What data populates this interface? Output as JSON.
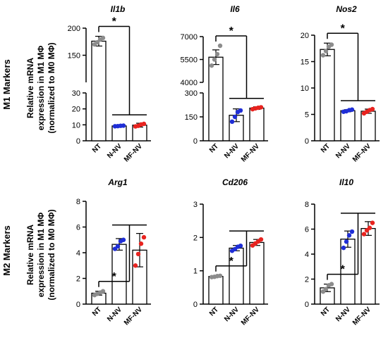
{
  "row_labels": [
    "M1 Markers",
    "M2 Markers"
  ],
  "ylabel_lines": [
    "Relative mRNA",
    "expression in M1 MΦ",
    "(normalized to M0 MΦ)"
  ],
  "significance_marker": "*",
  "chart_data": [
    {
      "type": "bar",
      "title": "Il1b",
      "categories": [
        "NT",
        "N-NV",
        "MF-NV"
      ],
      "values": [
        176,
        9.3,
        9.8
      ],
      "errors": [
        9,
        0.4,
        1.2
      ],
      "point_colors": [
        "#8c8c8c",
        "#1f2ed6",
        "#e8231f"
      ],
      "points": [
        [
          170,
          174,
          179,
          182
        ],
        [
          9.1,
          9.2,
          9.4,
          9.5
        ],
        [
          9.0,
          9.4,
          10.2,
          10.6
        ]
      ],
      "broken_axis": true,
      "lower": {
        "ylim": [
          0,
          30
        ],
        "ticks": [
          0,
          10,
          20,
          30
        ]
      },
      "upper": {
        "ylim": [
          100,
          200
        ],
        "ticks": [
          150,
          200
        ]
      },
      "significance": "*",
      "grid": false
    },
    {
      "type": "bar",
      "title": "Il6",
      "categories": [
        "NT",
        "N-NV",
        "MF-NV"
      ],
      "values": [
        5650,
        160,
        205
      ],
      "errors": [
        480,
        40,
        8
      ],
      "point_colors": [
        "#8c8c8c",
        "#1f2ed6",
        "#e8231f"
      ],
      "points": [
        [
          5100,
          5500,
          5850,
          6400
        ],
        [
          120,
          150,
          180,
          190
        ],
        [
          198,
          203,
          207,
          210
        ]
      ],
      "broken_axis": true,
      "lower": {
        "ylim": [
          0,
          300
        ],
        "ticks": [
          0,
          150,
          300
        ]
      },
      "upper": {
        "ylim": [
          4000,
          7000
        ],
        "ticks": [
          4000,
          5500,
          7000
        ]
      },
      "significance": "*",
      "grid": false
    },
    {
      "type": "bar",
      "title": "Nos2",
      "categories": [
        "NT",
        "N-NV",
        "MF-NV"
      ],
      "values": [
        17.3,
        5.7,
        5.6
      ],
      "errors": [
        1.2,
        0.2,
        0.4
      ],
      "point_colors": [
        "#8c8c8c",
        "#1f2ed6",
        "#e8231f"
      ],
      "points": [
        [
          16.2,
          17.0,
          17.8,
          18.2
        ],
        [
          5.5,
          5.6,
          5.8,
          5.9
        ],
        [
          5.2,
          5.5,
          5.8,
          6.0
        ]
      ],
      "ylim": [
        0,
        20
      ],
      "ticks": [
        0,
        5,
        10,
        15,
        20
      ],
      "significance": "*",
      "grid": false
    },
    {
      "type": "bar",
      "title": "Arg1",
      "categories": [
        "NT",
        "N-NV",
        "MF-NV"
      ],
      "values": [
        0.85,
        4.65,
        4.2
      ],
      "errors": [
        0.15,
        0.45,
        1.3
      ],
      "point_colors": [
        "#8c8c8c",
        "#1f2ed6",
        "#e8231f"
      ],
      "points": [
        [
          0.7,
          0.8,
          0.9,
          1.0
        ],
        [
          4.3,
          4.5,
          4.9,
          5.0
        ],
        [
          3.0,
          3.9,
          4.7,
          5.2
        ]
      ],
      "ylim": [
        0,
        8
      ],
      "ticks": [
        0,
        2,
        4,
        6,
        8
      ],
      "significance": "*",
      "grid": false
    },
    {
      "type": "bar",
      "title": "Cd206",
      "categories": [
        "NT",
        "N-NV",
        "MF-NV"
      ],
      "values": [
        0.83,
        1.68,
        1.85
      ],
      "errors": [
        0.02,
        0.08,
        0.09
      ],
      "point_colors": [
        "#8c8c8c",
        "#1f2ed6",
        "#e8231f"
      ],
      "points": [
        [
          0.81,
          0.82,
          0.84,
          0.85
        ],
        [
          1.6,
          1.65,
          1.72,
          1.75
        ],
        [
          1.76,
          1.82,
          1.88,
          1.94
        ]
      ],
      "ylim": [
        0,
        3
      ],
      "ticks": [
        0,
        1,
        2,
        3
      ],
      "significance": "*",
      "grid": false
    },
    {
      "type": "bar",
      "title": "Il10",
      "categories": [
        "NT",
        "N-NV",
        "MF-NV"
      ],
      "values": [
        1.3,
        5.2,
        6.05
      ],
      "errors": [
        0.3,
        0.65,
        0.55
      ],
      "point_colors": [
        "#8c8c8c",
        "#1f2ed6",
        "#e8231f"
      ],
      "points": [
        [
          1.0,
          1.2,
          1.5,
          1.6
        ],
        [
          4.5,
          5.0,
          5.5,
          5.8
        ],
        [
          5.6,
          5.9,
          6.1,
          6.5
        ]
      ],
      "ylim": [
        0,
        8
      ],
      "ticks": [
        0,
        2,
        4,
        6,
        8
      ],
      "significance": "*",
      "grid": false
    }
  ]
}
